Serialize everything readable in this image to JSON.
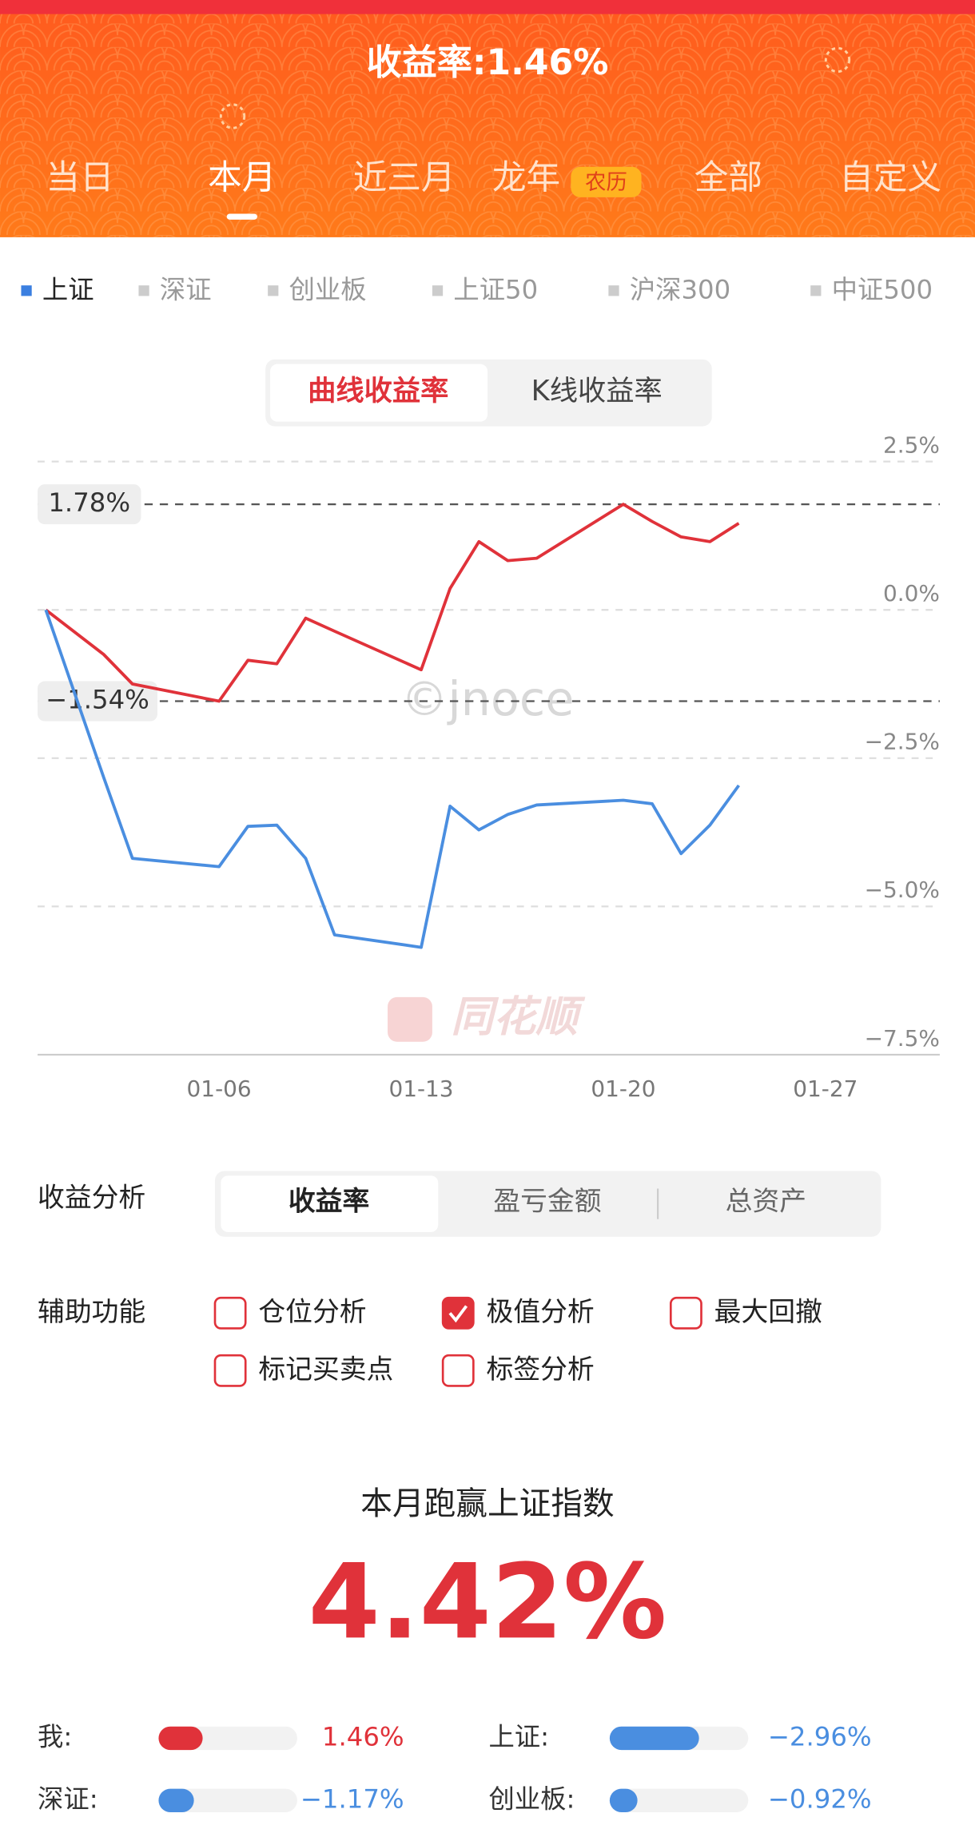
{
  "header": {
    "title": "收益率:1.46%"
  },
  "period_tabs": {
    "items": [
      "当日",
      "本月",
      "近三月",
      "龙年",
      "全部",
      "自定义"
    ],
    "badge": "农历",
    "selected": 1
  },
  "index_tabs": {
    "items": [
      "上证",
      "深证",
      "创业板",
      "上证50",
      "沪深300",
      "中证500"
    ],
    "selected": 0
  },
  "chart_toggle": {
    "items": [
      "曲线收益率",
      "K线收益率"
    ],
    "selected": 0
  },
  "chart_data": {
    "type": "line",
    "x": [
      "12-31",
      "01-02",
      "01-03",
      "01-06",
      "01-07",
      "01-08",
      "01-09",
      "01-10",
      "01-13",
      "01-14",
      "01-15",
      "01-16",
      "01-17",
      "01-20",
      "01-21",
      "01-22",
      "01-23",
      "01-24"
    ],
    "series": [
      {
        "color": "#e0323a",
        "values": [
          0,
          -0.75,
          -1.25,
          -1.54,
          -0.85,
          -0.91,
          -0.14,
          -0.36,
          -1.01,
          0.36,
          1.15,
          0.83,
          0.87,
          1.78,
          1.49,
          1.23,
          1.15,
          1.46
        ]
      },
      {
        "color": "#4a8ee0",
        "values": [
          0,
          -2.82,
          -4.19,
          -4.33,
          -3.65,
          -3.63,
          -4.19,
          -5.48,
          -5.69,
          -3.31,
          -3.71,
          -3.45,
          -3.29,
          -3.21,
          -3.27,
          -4.11,
          -3.63,
          -2.96
        ]
      }
    ],
    "xlim": [
      "12-31",
      "01-31"
    ],
    "xticks": [
      "01-06",
      "01-13",
      "01-20",
      "01-27"
    ],
    "ylim": [
      -7.5,
      2.5
    ],
    "yticks": [
      {
        "value": 2.5,
        "label": "2.5%"
      },
      {
        "value": 0,
        "label": "0.0%"
      },
      {
        "value": -2.5,
        "label": "−2.5%"
      },
      {
        "value": -5,
        "label": "−5.0%"
      },
      {
        "value": -7.5,
        "label": "−7.5%"
      }
    ],
    "extremes": [
      {
        "value": 1.78,
        "label": "1.78%"
      },
      {
        "value": -1.54,
        "label": "−1.54%"
      }
    ],
    "grid": true,
    "watermark": "©jnoce",
    "logo_text": "同花顺"
  },
  "analysis": {
    "label": "收益分析",
    "items": [
      "收益率",
      "盈亏金额",
      "总资产"
    ],
    "selected": 0
  },
  "aux": {
    "label": "辅助功能",
    "options": [
      {
        "label": "仓位分析",
        "checked": false
      },
      {
        "label": "极值分析",
        "checked": true
      },
      {
        "label": "最大回撤",
        "checked": false
      },
      {
        "label": "标记买卖点",
        "checked": false
      },
      {
        "label": "标签分析",
        "checked": false
      }
    ]
  },
  "summary": {
    "title": "本月跑赢上证指数",
    "value": "4.42%"
  },
  "comparison": {
    "names": [
      "我:",
      "上证:",
      "深证:",
      "创业板:"
    ],
    "colors": [
      "#e0323a",
      "#4a8ee0",
      "#4a8ee0",
      "#4a8ee0"
    ],
    "values": [
      1.46,
      -2.96,
      -1.17,
      -0.92
    ],
    "value_labels": [
      "1.46%",
      "−2.96%",
      "−1.17%",
      "−0.92%"
    ]
  }
}
